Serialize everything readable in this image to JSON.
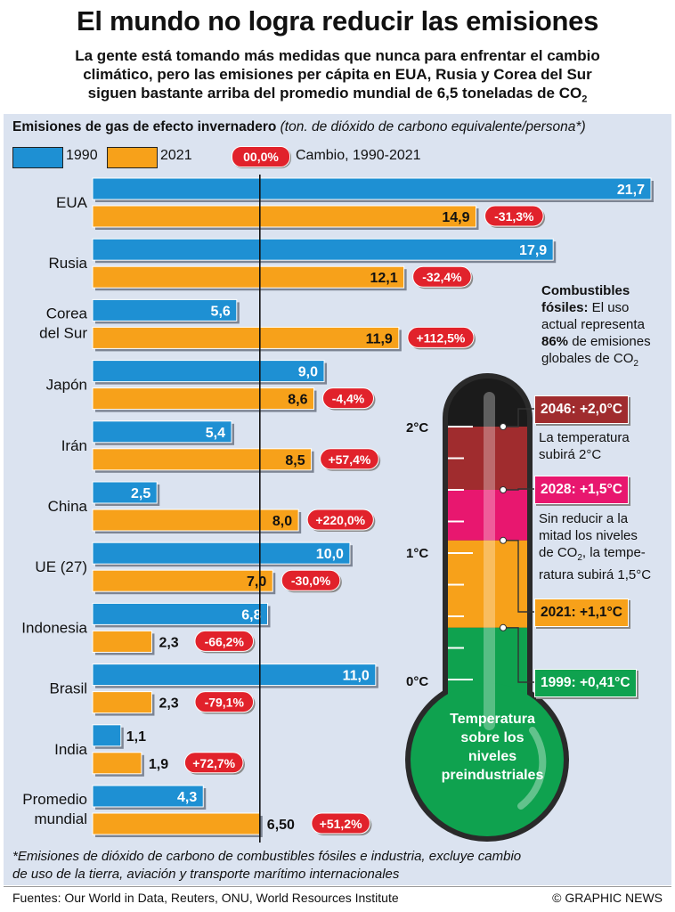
{
  "header": {
    "title": "El mundo no logra reducir las emisiones",
    "subtitle_l1": "La gente está tomando más medidas que nunca para enfrentar el cambio",
    "subtitle_l2": "climático, pero las emisiones per cápita en EUA, Rusia y Corea del Sur",
    "subtitle_l3": "siguen bastante arriba del promedio mundial de 6,5 toneladas de CO",
    "subtitle_sub": "2"
  },
  "legend": {
    "heading": "Emisiones de gas de efecto invernadero",
    "unit": "(ton. de dióxido de carbono equivalente/persona",
    "unit_mark": "*",
    "unit_close": ")",
    "label_1990": "1990",
    "label_2021": "2021",
    "pill": "00,0%",
    "pill_label": "Cambio, 1990-2021"
  },
  "colors": {
    "bar_1990": "#1e90d3",
    "bar_2021": "#f7a11a",
    "change_pill": "#e1222b",
    "panel": "#dbe3f0",
    "zone_green": "#0fa24f",
    "zone_orange": "#f7a11a",
    "zone_pink": "#e8176f",
    "zone_maroon": "#a02c2e",
    "zone_black": "#1b1b1b"
  },
  "chart_data": {
    "type": "bar",
    "orientation": "horizontal",
    "categories": [
      "EUA",
      "Rusia",
      "Corea del Sur",
      "Japón",
      "Irán",
      "China",
      "UE (27)",
      "Indonesia",
      "Brasil",
      "India",
      "Promedio mundial"
    ],
    "category_lines": [
      [
        "EUA"
      ],
      [
        "Rusia"
      ],
      [
        "Corea",
        "del Sur"
      ],
      [
        "Japón"
      ],
      [
        "Irán"
      ],
      [
        "China"
      ],
      [
        "UE (27)"
      ],
      [
        "Indonesia"
      ],
      [
        "Brasil"
      ],
      [
        "India"
      ],
      [
        "Promedio",
        "mundial"
      ]
    ],
    "series": [
      {
        "name": "1990",
        "values": [
          21.7,
          17.9,
          5.6,
          9.0,
          5.4,
          2.5,
          10.0,
          6.8,
          11.0,
          1.1,
          4.3
        ],
        "labels": [
          "21,7",
          "17,9",
          "5,6",
          "9,0",
          "5,4",
          "2,5",
          "10,0",
          "6,8",
          "11,0",
          "1,1",
          "4,3"
        ]
      },
      {
        "name": "2021",
        "values": [
          14.9,
          12.1,
          11.9,
          8.6,
          8.5,
          8.0,
          7.0,
          2.3,
          2.3,
          1.9,
          6.5
        ],
        "labels": [
          "14,9",
          "12,1",
          "11,9",
          "8,6",
          "8,5",
          "8,0",
          "7,0",
          "2,3",
          "2,3",
          "1,9",
          "6,50"
        ]
      }
    ],
    "change_1990_2021": [
      "-31,3%",
      "-32,4%",
      "+112,5%",
      "-4,4%",
      "+57,4%",
      "+220,0%",
      "-30,0%",
      "-66,2%",
      "-79,1%",
      "+72,7%",
      "+51,2%"
    ],
    "reference_line": {
      "value": 6.5
    },
    "xlim": [
      0,
      21.7
    ]
  },
  "fossil_note": {
    "line1": "Combustibles",
    "line2_bold": "fósiles:",
    "line2_rest": " El uso",
    "line3": "actual representa",
    "line4_bold": "86%",
    "line4_rest": " de emisiones",
    "line5": "globales de CO",
    "line5_sub": "2"
  },
  "thermometer": {
    "scale": [
      {
        "label": "2°C",
        "value": 2.0
      },
      {
        "label": "1°C",
        "value": 1.0
      },
      {
        "label": "0°C",
        "value": 0.0
      }
    ],
    "zones_top_c": {
      "green": 0.41,
      "orange": 1.1,
      "pink": 1.5,
      "maroon": 2.0
    },
    "markers": [
      {
        "label": "2046: +2,0°C",
        "value": 2.0
      },
      {
        "label": "2028: +1,5°C",
        "value": 1.5
      },
      {
        "label": "2021: +1,1°C",
        "value": 1.1
      },
      {
        "label": "1999: +0,41°C",
        "value": 0.41
      }
    ],
    "note_2046_l1": "La temperatura",
    "note_2046_l2": "subirá 2°C",
    "note_2028_l1": "Sin reducir a la",
    "note_2028_l2": "mitad los niveles",
    "note_2028_l3a": "de CO",
    "note_2028_l3sub": "2",
    "note_2028_l3b": ", la tempe-",
    "note_2028_l4": "ratura subirá 1,5°C",
    "bulb_l1": "Temperatura",
    "bulb_l2": "sobre los",
    "bulb_l3": "niveles",
    "bulb_l4": "preindustriales"
  },
  "footer": {
    "footnote_l1": "*Emisiones de dióxido de carbono de combustibles fósiles e industria, excluye cambio",
    "footnote_l2": "de uso de la tierra, aviación y transporte marítimo internacionales",
    "sources": "Fuentes: Our World in Data, Reuters, ONU, World Resources Institute",
    "credit": "© GRAPHIC NEWS"
  }
}
